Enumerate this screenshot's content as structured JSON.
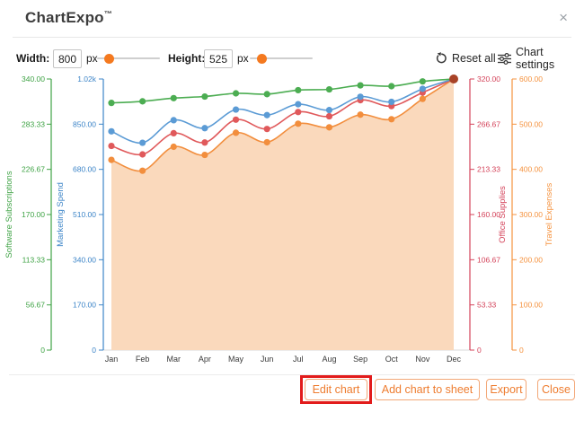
{
  "window": {
    "title": "ChartExpo",
    "trademark": "™",
    "close_icon": "×"
  },
  "controls": {
    "width_label": "Width:",
    "width_value": "800",
    "width_unit": "px",
    "height_label": "Height:",
    "height_value": "525",
    "height_unit": "px",
    "reset_all_label": "Reset all",
    "chart_settings_label": "Chart settings",
    "accent_color": "#f4791f"
  },
  "icons": {
    "close": "close-x",
    "reset_all": "undo-arrow",
    "chart_settings": "sliders"
  },
  "footer": {
    "buttons": [
      {
        "label": "Edit chart",
        "highlighted": true
      },
      {
        "label": "Add chart to sheet",
        "highlighted": false
      },
      {
        "label": "Export",
        "highlighted": false
      },
      {
        "label": "Close",
        "highlighted": false
      }
    ],
    "button_color": "#ee7c2f",
    "highlight_color": "#e21b1b"
  },
  "chart_data": {
    "type": "line",
    "x": [
      "Jan",
      "Feb",
      "Mar",
      "Apr",
      "May",
      "Jun",
      "Jul",
      "Aug",
      "Sep",
      "Oct",
      "Nov",
      "Dec"
    ],
    "grid": "off",
    "legend_position": "none",
    "convergence_point_color": "#a84226",
    "series": [
      {
        "name": "Software Subscriptions",
        "axis": "left-outer",
        "label_color": "#3fa345",
        "line_color": "#4cad52",
        "axis_max": 340,
        "axis_ticks": [
          "340.00",
          "283.33",
          "226.67",
          "170.00",
          "113.33",
          "56.67",
          "0"
        ],
        "values": [
          310,
          312,
          316,
          318,
          322,
          321,
          326,
          327,
          332,
          331,
          337,
          340
        ]
      },
      {
        "name": "Marketing Spend",
        "axis": "left-inner",
        "label_color": "#3d85c8",
        "line_color": "#5b9bd5",
        "axis_max": 1020,
        "axis_ticks": [
          "1.02k",
          "850.00",
          "680.00",
          "510.00",
          "340.00",
          "170.00",
          "0"
        ],
        "values": [
          823,
          780,
          865,
          835,
          905,
          884,
          925,
          903,
          953,
          934,
          983,
          1020
        ]
      },
      {
        "name": "Office Supplies",
        "axis": "right-inner",
        "label_color": "#d4435a",
        "line_color": "#e0595b",
        "axis_max": 320,
        "axis_ticks": [
          "320.00",
          "266.67",
          "213.33",
          "160.00",
          "106.67",
          "53.33",
          "0"
        ],
        "values": [
          241,
          231,
          256,
          245,
          272,
          261,
          281,
          276,
          295,
          288,
          304,
          320
        ]
      },
      {
        "name": "Travel Expenses",
        "axis": "right-outer",
        "label_color": "#f5923e",
        "line_color": "#f28e3d",
        "area": true,
        "area_color": "#fad9bc",
        "axis_max": 600,
        "axis_ticks": [
          "600.00",
          "500.00",
          "400.00",
          "300.00",
          "200.00",
          "100.00",
          "0"
        ],
        "values": [
          421,
          397,
          450,
          432,
          481,
          460,
          501,
          493,
          521,
          511,
          556,
          600
        ]
      }
    ]
  }
}
